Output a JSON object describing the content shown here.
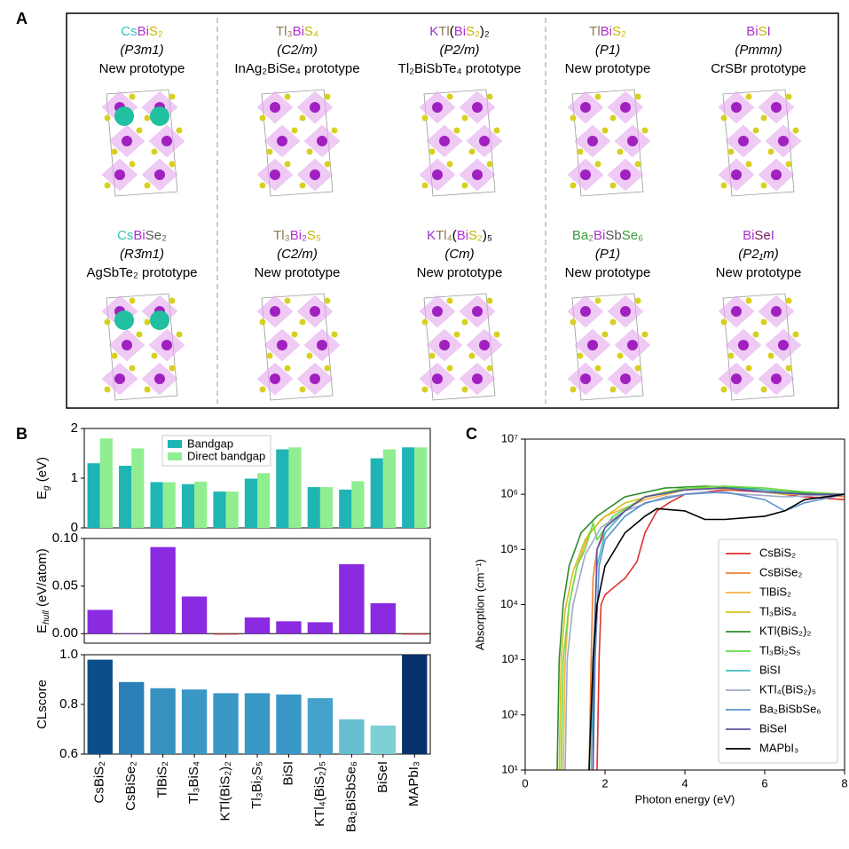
{
  "panel_labels": [
    "A",
    "B",
    "C"
  ],
  "structures": [
    {
      "formula": [
        {
          "text": "Cs",
          "color": "#2ec4b6"
        },
        {
          "text": "Bi",
          "color": "#b030d0"
        },
        {
          "text": "S₂",
          "color": "#c8b400"
        }
      ],
      "space_group": "(P3m1)",
      "prototype": "New prototype"
    },
    {
      "formula": [
        {
          "text": "Tl₃",
          "color": "#8b7a50"
        },
        {
          "text": "Bi",
          "color": "#b030d0"
        },
        {
          "text": "S₄",
          "color": "#c8b400"
        }
      ],
      "space_group": "(C2/m)",
      "prototype": "InAg₂BiSe₄ prototype"
    },
    {
      "formula": [
        {
          "text": "K",
          "color": "#9933cc"
        },
        {
          "text": "Tl",
          "color": "#8b7a50"
        },
        {
          "text": "(",
          "color": "#000000"
        },
        {
          "text": "Bi",
          "color": "#b030d0"
        },
        {
          "text": "S₂",
          "color": "#c8b400"
        },
        {
          "text": ")₂",
          "color": "#000000"
        }
      ],
      "space_group": "(P2/m)",
      "prototype": "Tl₂BiSbTe₄ prototype"
    },
    {
      "formula": [
        {
          "text": "Tl",
          "color": "#8b7a50"
        },
        {
          "text": "Bi",
          "color": "#b030d0"
        },
        {
          "text": "S₂",
          "color": "#c8b400"
        }
      ],
      "space_group": "(P1)",
      "prototype": "New prototype"
    },
    {
      "formula": [
        {
          "text": "Bi",
          "color": "#b030d0"
        },
        {
          "text": "S",
          "color": "#c8b400"
        },
        {
          "text": "I",
          "color": "#9933cc"
        }
      ],
      "space_group": "(Pmmn)",
      "prototype": "CrSBr prototype"
    },
    {
      "formula": [
        {
          "text": "Cs",
          "color": "#2ec4b6"
        },
        {
          "text": "Bi",
          "color": "#b030d0"
        },
        {
          "text": "Se₂",
          "color": "#555555"
        }
      ],
      "space_group": "(R3̄m1)",
      "prototype": "AgSbTe₂ prototype"
    },
    {
      "formula": [
        {
          "text": "Tl₃",
          "color": "#8b7a50"
        },
        {
          "text": "Bi₂",
          "color": "#b030d0"
        },
        {
          "text": "S₅",
          "color": "#c8b400"
        }
      ],
      "space_group": "(C2/m)",
      "prototype": "New prototype"
    },
    {
      "formula": [
        {
          "text": "K",
          "color": "#9933cc"
        },
        {
          "text": "Tl₄",
          "color": "#8b7a50"
        },
        {
          "text": "(",
          "color": "#000000"
        },
        {
          "text": "Bi",
          "color": "#b030d0"
        },
        {
          "text": "S₂",
          "color": "#c8b400"
        },
        {
          "text": ")₅",
          "color": "#000000"
        }
      ],
      "space_group": "(Cm)",
      "prototype": "New prototype"
    },
    {
      "formula": [
        {
          "text": "Ba₂",
          "color": "#3a9a3a"
        },
        {
          "text": "Bi",
          "color": "#b030d0"
        },
        {
          "text": "Sb",
          "color": "#555555"
        },
        {
          "text": "Se₆",
          "color": "#3a9a3a"
        }
      ],
      "space_group": "(P1)",
      "prototype": "New prototype"
    },
    {
      "formula": [
        {
          "text": "Bi",
          "color": "#b030d0"
        },
        {
          "text": "Se",
          "color": "#7a2060"
        },
        {
          "text": "I",
          "color": "#9933cc"
        }
      ],
      "space_group": "(P2₁m)",
      "prototype": "New prototype"
    }
  ],
  "chart_data": [
    {
      "type": "bar",
      "ylabel": [
        {
          "text": "E"
        },
        {
          "text": "g",
          "sub": true
        },
        {
          "text": " (eV)"
        }
      ],
      "series": [
        {
          "name": "Bandgap",
          "color": "#1fb5b5",
          "values": [
            1.3,
            1.25,
            0.92,
            0.88,
            0.73,
            0.99,
            1.58,
            0.82,
            0.77,
            1.4,
            1.62
          ]
        },
        {
          "name": "Direct bandgap",
          "color": "#90ee90",
          "values": [
            1.8,
            1.6,
            0.92,
            0.93,
            0.73,
            1.1,
            1.62,
            0.82,
            0.94,
            1.58,
            1.62
          ]
        }
      ],
      "ylim": [
        0,
        2
      ],
      "yticks": [
        0,
        1,
        2
      ],
      "legend": "upper left"
    },
    {
      "type": "bar",
      "ylabel": [
        {
          "text": "E"
        },
        {
          "text": "hull",
          "sub": true
        },
        {
          "text": " (eV/atom)"
        }
      ],
      "values": [
        0.025,
        0,
        0.091,
        0.039,
        -0.001,
        0.017,
        0.013,
        0.012,
        0.073,
        0.032,
        -0.001
      ],
      "colors": [
        "#8a2be2",
        "#8a2be2",
        "#8a2be2",
        "#8a2be2",
        "#d03030",
        "#8a2be2",
        "#8a2be2",
        "#8a2be2",
        "#8a2be2",
        "#8a2be2",
        "#d03030"
      ],
      "ylim": [
        -0.01,
        0.1
      ],
      "yticks": [
        {
          "value": 0,
          "label": "0.00"
        },
        {
          "value": 0.05,
          "label": "0.05"
        },
        {
          "value": 0.1,
          "label": "0.10"
        }
      ],
      "zero_line": true
    },
    {
      "type": "bar",
      "ylabel": [
        {
          "text": "CLscore"
        }
      ],
      "categories": [
        "CsBiS₂",
        "CsBiSe₂",
        "TlBiS₂",
        "Tl₃BiS₄",
        "KTl(BiS₂)₂",
        "Tl₃Bi₂S₅",
        "BiSI",
        "KTl₄(BiS₂)₅",
        "Ba₂BiSbSe₆",
        "BiSeI",
        "MAPbI₃"
      ],
      "values": [
        0.98,
        0.89,
        0.865,
        0.86,
        0.845,
        0.845,
        0.84,
        0.825,
        0.74,
        0.715,
        1.0
      ],
      "colors": [
        "#0b4f8a",
        "#2a7fb8",
        "#3690c0",
        "#3a98c6",
        "#3a98c6",
        "#3a98c6",
        "#3a98c6",
        "#44a2cb",
        "#67c0cf",
        "#7ecfd4",
        "#08306b"
      ],
      "ylim": [
        0.6,
        1.0
      ],
      "yticks": [
        0.6,
        0.8,
        {
          "value": 1.0,
          "label": "1.0"
        }
      ]
    },
    {
      "type": "line",
      "xlabel": "Photon energy (eV)",
      "ylabel": "Absorption (cm⁻¹)",
      "log_y": true,
      "legend": "lower right",
      "xlim": [
        0,
        8
      ],
      "xticks": [
        0,
        2,
        4,
        6,
        8
      ],
      "ylim": [
        10,
        10000000
      ],
      "yticks": [
        {
          "value": 10,
          "label": "10¹"
        },
        {
          "value": 100,
          "label": "10²"
        },
        {
          "value": 1000,
          "label": "10³"
        },
        {
          "value": 10000,
          "label": "10⁴"
        },
        {
          "value": 100000,
          "label": "10⁵"
        },
        {
          "value": 1000000,
          "label": "10⁶"
        },
        {
          "value": 10000000,
          "label": "10⁷"
        }
      ],
      "series": [
        {
          "name": "CsBiS₂",
          "color": "#e03030",
          "x": [
            1.8,
            1.85,
            1.9,
            2.0,
            2.2,
            2.5,
            2.8,
            3.0,
            3.3,
            3.6,
            4,
            5,
            6,
            7,
            8
          ],
          "values": [
            10,
            1000,
            10000,
            15000,
            20000,
            30000,
            60000,
            200000,
            500000,
            700000,
            1000000,
            1200000,
            1100000,
            900000,
            800000
          ]
        },
        {
          "name": "CsBiSe₂",
          "color": "#f07f30",
          "x": [
            1.6,
            1.65,
            1.7,
            1.8,
            2,
            2.5,
            3,
            4,
            5,
            6,
            7,
            8
          ],
          "values": [
            10,
            1000,
            30000,
            100000,
            200000,
            500000,
            900000,
            1300000,
            1400000,
            1200000,
            1000000,
            900000
          ]
        },
        {
          "name": "TlBiS₂",
          "color": "#f5b041",
          "x": [
            0.95,
            1.0,
            1.1,
            1.3,
            1.6,
            2,
            3,
            4,
            5,
            6,
            7,
            8
          ],
          "values": [
            10,
            1000,
            10000,
            50000,
            200000,
            400000,
            800000,
            1200000,
            1300000,
            1200000,
            1100000,
            1000000
          ]
        },
        {
          "name": "Tl₃BiS₄",
          "color": "#d4c020",
          "x": [
            0.85,
            0.9,
            1.0,
            1.2,
            1.5,
            1.9,
            2.5,
            3.5,
            4.5,
            5.5,
            6.5,
            8
          ],
          "values": [
            10,
            1000,
            8000,
            40000,
            150000,
            350000,
            700000,
            1100000,
            1300000,
            1200000,
            1000000,
            1000000
          ]
        },
        {
          "name": "KTl(BiS₂)₂",
          "color": "#2e8b2e",
          "x": [
            0.8,
            0.85,
            0.95,
            1.1,
            1.4,
            1.8,
            2.5,
            3.5,
            4.5,
            5.5,
            6.5,
            8
          ],
          "values": [
            10,
            1000,
            10000,
            50000,
            200000,
            400000,
            900000,
            1300000,
            1400000,
            1300000,
            1100000,
            1000000
          ]
        },
        {
          "name": "Tl₃Bi₂S₅",
          "color": "#66dd44",
          "x": [
            0.9,
            0.95,
            1.1,
            1.3,
            1.5,
            1.7,
            1.8,
            2.2,
            3,
            4,
            5,
            6,
            7,
            8
          ],
          "values": [
            10,
            1000,
            10000,
            50000,
            100000,
            300000,
            150000,
            400000,
            900000,
            1300000,
            1400000,
            1300000,
            1100000,
            1000000
          ]
        },
        {
          "name": "BiSI",
          "color": "#40c0c0",
          "x": [
            1.65,
            1.7,
            1.8,
            2,
            2.5,
            3,
            4,
            5,
            6,
            7,
            8
          ],
          "values": [
            10,
            1000,
            50000,
            200000,
            500000,
            900000,
            1200000,
            1300000,
            1200000,
            1000000,
            1000000
          ]
        },
        {
          "name": "KTl₄(BiS₂)₅",
          "color": "#a0a8c8",
          "x": [
            1.0,
            1.05,
            1.2,
            1.5,
            1.9,
            2.5,
            3.5,
            4.5,
            5.5,
            6.5,
            8
          ],
          "values": [
            10,
            1000,
            10000,
            80000,
            250000,
            500000,
            900000,
            1100000,
            1000000,
            900000,
            1000000
          ]
        },
        {
          "name": "Ba₂BiSbSe₆",
          "color": "#5b8fd0",
          "x": [
            1.7,
            1.75,
            1.85,
            2.0,
            2.5,
            3,
            4,
            5,
            6,
            6.5,
            7,
            8
          ],
          "values": [
            10,
            1000,
            50000,
            150000,
            400000,
            700000,
            1000000,
            1100000,
            800000,
            500000,
            700000,
            1000000
          ]
        },
        {
          "name": "BiSeI",
          "color": "#6050a0",
          "x": [
            1.7,
            1.72,
            1.8,
            2.0,
            2.5,
            3,
            4,
            5,
            6,
            7,
            8
          ],
          "values": [
            10,
            1000,
            100000,
            250000,
            500000,
            900000,
            1200000,
            1300000,
            1100000,
            1000000,
            1000000
          ]
        },
        {
          "name": "MAPbI₃",
          "color": "#000000",
          "x": [
            1.6,
            1.7,
            1.8,
            2,
            2.5,
            3,
            3.3,
            4,
            4.5,
            5,
            6,
            6.5,
            7,
            8
          ],
          "values": [
            10,
            1000,
            10000,
            50000,
            200000,
            400000,
            550000,
            500000,
            350000,
            350000,
            400000,
            500000,
            800000,
            1000000
          ]
        }
      ]
    }
  ]
}
